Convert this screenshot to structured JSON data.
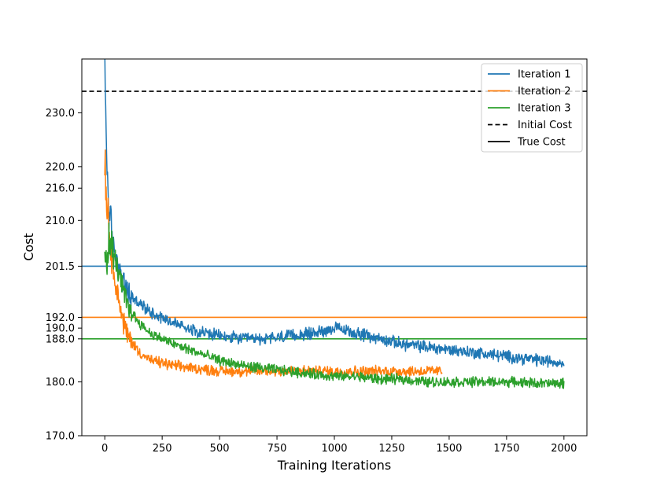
{
  "chart_data": {
    "type": "line",
    "title": "",
    "xlabel": "Training Iterations",
    "ylabel": "Cost",
    "xlim": [
      -100,
      2100
    ],
    "ylim": [
      170,
      240
    ],
    "xticks": [
      0,
      250,
      500,
      750,
      1000,
      1250,
      1500,
      1750,
      2000
    ],
    "xtick_labels": [
      "0",
      "250",
      "500",
      "750",
      "1000",
      "1250",
      "1500",
      "1750",
      "2000"
    ],
    "yticks": [
      170,
      180,
      188,
      190,
      192,
      201.5,
      210,
      216,
      220,
      230
    ],
    "ytick_labels": [
      "170.0",
      "180.0",
      "188.0",
      "190.0",
      "192.0",
      "201.5",
      "210.0",
      "216.0",
      "220.0",
      "230.0"
    ],
    "grid": false,
    "legend_position": "top-right",
    "legend": [
      "Iteration 1",
      "Iteration 2",
      "Iteration 3",
      "Initial Cost",
      "True Cost"
    ],
    "series": [
      {
        "name": "Iteration 1",
        "color": "#1f77b4",
        "x": [
          0,
          5,
          10,
          20,
          30,
          50,
          75,
          100,
          150,
          200,
          250,
          300,
          400,
          500,
          600,
          700,
          800,
          900,
          950,
          1000,
          1100,
          1200,
          1300,
          1400,
          1500,
          1600,
          1700,
          1800,
          1900,
          2000
        ],
        "y": [
          238.5,
          228,
          220,
          211,
          207,
          203,
          199,
          196.5,
          194.5,
          193,
          192,
          191,
          189.5,
          188.5,
          188,
          188,
          188.5,
          189,
          189.5,
          190,
          189,
          188,
          187,
          186.5,
          186,
          185.5,
          185,
          184.5,
          184,
          183.5
        ],
        "noise": 0.9
      },
      {
        "name": "Iteration 2",
        "color": "#ff7f0e",
        "x": [
          0,
          5,
          10,
          20,
          30,
          50,
          75,
          100,
          150,
          200,
          250,
          300,
          400,
          500,
          600,
          700,
          800,
          900,
          1000,
          1100,
          1200,
          1300,
          1400,
          1470
        ],
        "y": [
          222,
          217,
          213,
          208,
          204,
          198,
          192,
          188.5,
          185.5,
          184,
          183.5,
          183,
          182.5,
          182,
          182,
          182,
          182,
          182,
          182,
          182,
          182,
          182,
          182,
          182
        ],
        "noise": 0.8
      },
      {
        "name": "Iteration 3",
        "color": "#2ca02c",
        "x": [
          0,
          10,
          20,
          30,
          50,
          75,
          100,
          150,
          200,
          250,
          300,
          400,
          500,
          600,
          700,
          800,
          900,
          1000,
          1100,
          1200,
          1300,
          1400,
          1500,
          1600,
          1700,
          1800,
          1900,
          2000
        ],
        "y": [
          205,
          203,
          206,
          205,
          202,
          198,
          194,
          191,
          189,
          188,
          187,
          185.5,
          184,
          183,
          182.5,
          182,
          181.5,
          181,
          181,
          180.5,
          180.5,
          180,
          180,
          180,
          180,
          180,
          179.7,
          179.7
        ],
        "noise": 0.75
      }
    ],
    "hlines": [
      {
        "name": "Initial Cost",
        "y": 234,
        "color": "#000000",
        "style": "dashed"
      },
      {
        "name": "True Cost",
        "color": "#000000",
        "style": "solid"
      },
      {
        "name": "Iteration 1",
        "y": 201.5,
        "color": "#1f77b4",
        "style": "solid"
      },
      {
        "name": "Iteration 2",
        "y": 192,
        "color": "#ff7f0e",
        "style": "solid"
      },
      {
        "name": "Iteration 3",
        "y": 188,
        "color": "#2ca02c",
        "style": "solid"
      }
    ]
  }
}
